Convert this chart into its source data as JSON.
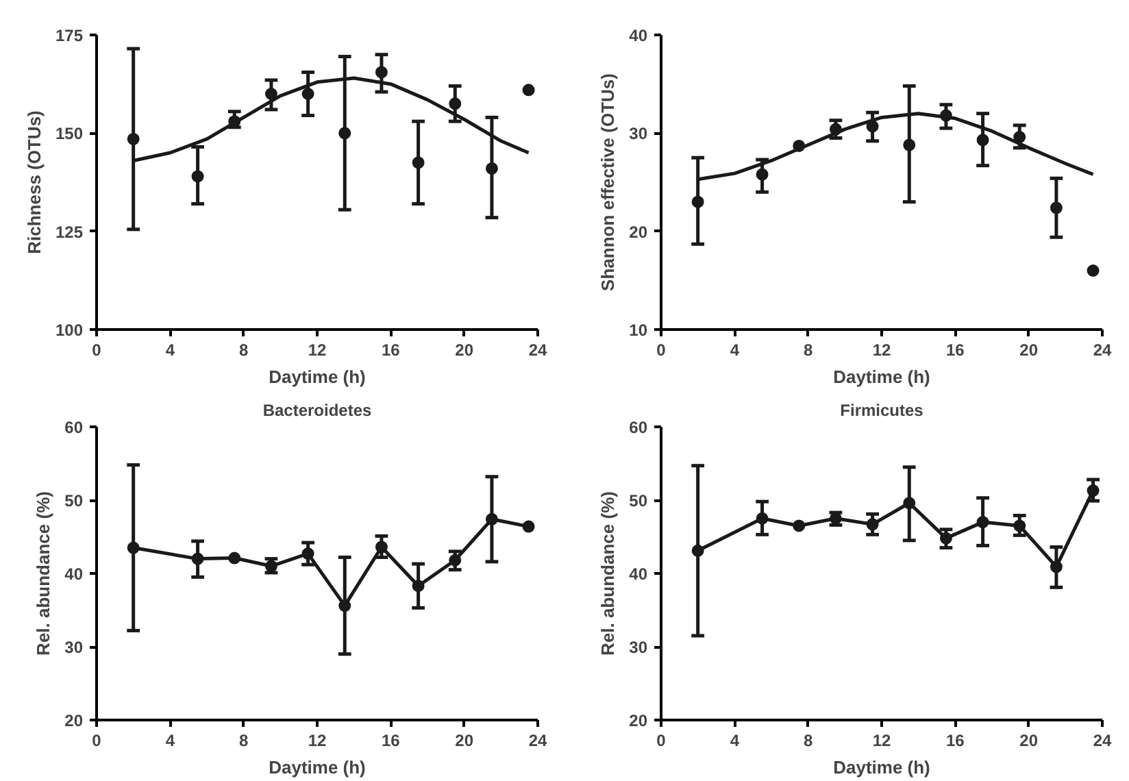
{
  "chart_data": [
    {
      "type": "scatter",
      "xlabel": "Daytime (h)",
      "ylabel": "Richness (OTUs)",
      "xlim": [
        0,
        24
      ],
      "xticks": [
        0,
        4,
        8,
        12,
        16,
        20,
        24
      ],
      "ylim": [
        100,
        175
      ],
      "yticks": [
        100,
        125,
        150,
        175
      ],
      "grid": false,
      "marker": "circle",
      "series": [
        {
          "color": "#1a1a1a",
          "x": [
            2,
            5.5,
            7.5,
            9.5,
            11.5,
            13.5,
            15.5,
            17.5,
            19.5,
            21.5,
            23.5
          ],
          "values": [
            148.5,
            139,
            153,
            160,
            160,
            150,
            165.5,
            142.5,
            157.5,
            141,
            161
          ],
          "errors": [
            [
              125.5,
              171.5
            ],
            [
              132,
              146.5
            ],
            [
              151.5,
              155.5
            ],
            [
              156,
              163.5
            ],
            [
              154.5,
              165.5
            ],
            [
              130.5,
              169.5
            ],
            [
              160.5,
              170
            ],
            [
              132,
              153
            ],
            [
              153,
              162
            ],
            [
              128.5,
              154
            ],
            null
          ]
        },
        {
          "type": "line",
          "marker": "none",
          "line_style": "solid",
          "color": "#1a1a1a",
          "x": [
            2,
            4,
            6,
            8,
            10,
            12,
            14,
            16,
            18,
            20,
            22,
            23.5
          ],
          "values": [
            143,
            145,
            148.5,
            154,
            159.5,
            163,
            164,
            162.5,
            158.5,
            153.5,
            148,
            145
          ]
        }
      ]
    },
    {
      "type": "scatter",
      "xlabel": "Daytime (h)",
      "ylabel": "Shannon effective (OTUs)",
      "xlim": [
        0,
        24
      ],
      "xticks": [
        0,
        4,
        8,
        12,
        16,
        20,
        24
      ],
      "ylim": [
        10,
        40
      ],
      "yticks": [
        10,
        20,
        30,
        40
      ],
      "grid": false,
      "marker": "circle",
      "series": [
        {
          "color": "#1a1a1a",
          "x": [
            2,
            5.5,
            7.5,
            9.5,
            11.5,
            13.5,
            15.5,
            17.5,
            19.5,
            21.5,
            23.5
          ],
          "values": [
            23,
            25.8,
            28.7,
            30.4,
            30.7,
            28.8,
            31.8,
            29.3,
            29.6,
            22.4,
            16
          ],
          "errors": [
            [
              18.7,
              27.5
            ],
            [
              24,
              27.3
            ],
            null,
            [
              29.5,
              31.3
            ],
            [
              29.2,
              32.1
            ],
            [
              23,
              34.8
            ],
            [
              30.5,
              32.9
            ],
            [
              26.7,
              32
            ],
            [
              28.5,
              30.8
            ],
            [
              19.4,
              25.4
            ],
            null
          ]
        },
        {
          "type": "line",
          "marker": "none",
          "line_style": "solid",
          "color": "#1a1a1a",
          "x": [
            2,
            4,
            6,
            8,
            10,
            12,
            14,
            16,
            18,
            20,
            22,
            23.5
          ],
          "values": [
            25.3,
            25.9,
            27.2,
            28.8,
            30.4,
            31.6,
            32,
            31.5,
            30.2,
            28.5,
            26.9,
            25.8
          ]
        }
      ]
    },
    {
      "type": "line",
      "title": "Bacteroidetes",
      "xlabel": "Daytime (h)",
      "ylabel": "Rel. abundance (%)",
      "xlim": [
        0,
        24
      ],
      "xticks": [
        0,
        4,
        8,
        12,
        16,
        20,
        24
      ],
      "ylim": [
        20,
        60
      ],
      "yticks": [
        20,
        30,
        40,
        50,
        60
      ],
      "grid": false,
      "marker": "circle",
      "line_style": "solid",
      "series": [
        {
          "color": "#1a1a1a",
          "x": [
            2,
            5.5,
            7.5,
            9.5,
            11.5,
            13.5,
            15.5,
            17.5,
            19.5,
            21.5,
            23.5
          ],
          "values": [
            43.5,
            42,
            42.1,
            41,
            42.7,
            35.6,
            43.6,
            38.3,
            41.8,
            47.4,
            46.4
          ],
          "errors": [
            [
              32.2,
              54.8
            ],
            [
              39.5,
              44.4
            ],
            null,
            [
              40.1,
              42
            ],
            [
              41.2,
              44.2
            ],
            [
              29,
              42.2
            ],
            [
              42.2,
              45.1
            ],
            [
              35.3,
              41.3
            ],
            [
              40.5,
              43
            ],
            [
              41.6,
              53.2
            ],
            null
          ]
        }
      ]
    },
    {
      "type": "line",
      "title": "Firmicutes",
      "xlabel": "Daytime (h)",
      "ylabel": "Rel. abundance (%)",
      "xlim": [
        0,
        24
      ],
      "xticks": [
        0,
        4,
        8,
        12,
        16,
        20,
        24
      ],
      "ylim": [
        20,
        60
      ],
      "yticks": [
        20,
        30,
        40,
        50,
        60
      ],
      "grid": false,
      "marker": "circle",
      "line_style": "solid",
      "series": [
        {
          "color": "#1a1a1a",
          "x": [
            2,
            5.5,
            7.5,
            9.5,
            11.5,
            13.5,
            15.5,
            17.5,
            19.5,
            21.5,
            23.5
          ],
          "values": [
            43.1,
            47.5,
            46.5,
            47.5,
            46.7,
            49.6,
            44.8,
            47,
            46.5,
            40.9,
            51.3
          ],
          "errors": [
            [
              31.5,
              54.7
            ],
            [
              45.3,
              49.8
            ],
            null,
            [
              46.6,
              48.3
            ],
            [
              45.3,
              48.1
            ],
            [
              44.5,
              54.5
            ],
            [
              43.5,
              46
            ],
            [
              43.8,
              50.3
            ],
            [
              45.2,
              47.9
            ],
            [
              38.1,
              43.6
            ],
            [
              49.9,
              52.8
            ]
          ]
        }
      ]
    }
  ]
}
